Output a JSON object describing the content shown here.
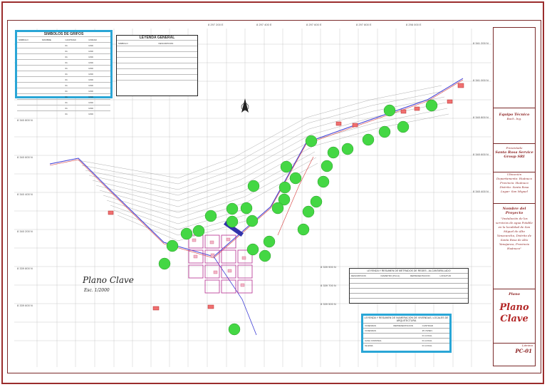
{
  "legend_symbols": {
    "title": "SIMBOLOS DE GRIFOS",
    "headers": [
      "SIMBOLO",
      "NOMBRE",
      "CANTIDAD",
      "UNIDAD"
    ],
    "rows": [
      [
        "",
        "",
        "01",
        "UND"
      ],
      [
        "",
        "",
        "01",
        "UND"
      ],
      [
        "",
        "",
        "01",
        "UND"
      ],
      [
        "",
        "",
        "01",
        "UND"
      ],
      [
        "",
        "",
        "01",
        "UND"
      ],
      [
        "",
        "",
        "01",
        "UND"
      ],
      [
        "",
        "",
        "01",
        "UND"
      ],
      [
        "",
        "",
        "01",
        "UND"
      ],
      [
        "",
        "",
        "01",
        "UND"
      ],
      [
        "",
        "",
        "01",
        "UND"
      ],
      [
        "",
        "",
        "01",
        "UND"
      ],
      [
        "",
        "",
        "01",
        "UND"
      ],
      [
        "",
        "",
        "01",
        "UND"
      ]
    ]
  },
  "legend_general": {
    "title": "LEYENDA GENERAL",
    "headers": [
      "SIMBOLO",
      "DESCRIPCION"
    ],
    "rows": [
      "",
      "",
      "",
      "",
      "",
      "",
      ""
    ]
  },
  "plano_label": "Plano Clave",
  "plano_sub": "Esc. 1/2000",
  "leyenda_redes": {
    "title": "LEYENDA Y RESUMEN DE METRADOS DE REDES - ALCANTARILLADO",
    "headers": [
      "DESCRIPCION",
      "DIAMETRO (PULG)",
      "REPRESENTACION",
      "LONGITUD"
    ],
    "rows": [
      [
        "",
        "",
        "",
        ""
      ],
      [
        "",
        "",
        "",
        ""
      ],
      [
        "",
        "",
        "",
        ""
      ],
      [
        "",
        "",
        "",
        ""
      ],
      [
        "",
        "",
        "",
        ""
      ]
    ]
  },
  "leyenda_viviendas": {
    "title": "LEYENDA Y RESUMEN DE NUMERACION DE VIVIENDAS, LOCALES DE ARQUITECTURA",
    "headers": [
      "VIVIENDAS",
      "REPRESENTACION",
      "CANTIDAD"
    ],
    "rows": [
      [
        "VIVIENDAS",
        "",
        "25 VIVIEN."
      ],
      [
        "",
        "",
        "01 LOCAL"
      ],
      [
        "CASA COMUNAL",
        "",
        "01 LOCAL"
      ],
      [
        "IGLESIA",
        "",
        "01 LOCAL"
      ]
    ]
  },
  "title_block": {
    "equipo_tecnico": "Equipo Técnico",
    "equipo_sub": "Bach. Ing.",
    "presentado": "Presentado",
    "empresa": "Santa Rosa Service Group SRI",
    "ubicacion": "Ubicación",
    "ubic_rows": [
      "Departamento: Huánuco",
      "Provincia: Huánuco",
      "Distrito: Santa Rosa",
      "Lugar: San Miguel"
    ],
    "nombre_proyecto": "Nombre del Proyecto",
    "proyecto_desc": "\"Instalación de los servicios de agua Potable en la localidad de San Miguel de Alto Yanacancha, Distrito de Santa Rosa de Alto Yanajanca, Provincia Huánuco\"",
    "plano_head": "Plano",
    "plano_big": "Plano Clave",
    "lamina_label": "Lámina",
    "lamina": "PC-01"
  },
  "colors": {
    "border": "#9b2d2d",
    "title": "#b32828",
    "tree": "#3fd23f",
    "accent": "#2aa6d6"
  }
}
